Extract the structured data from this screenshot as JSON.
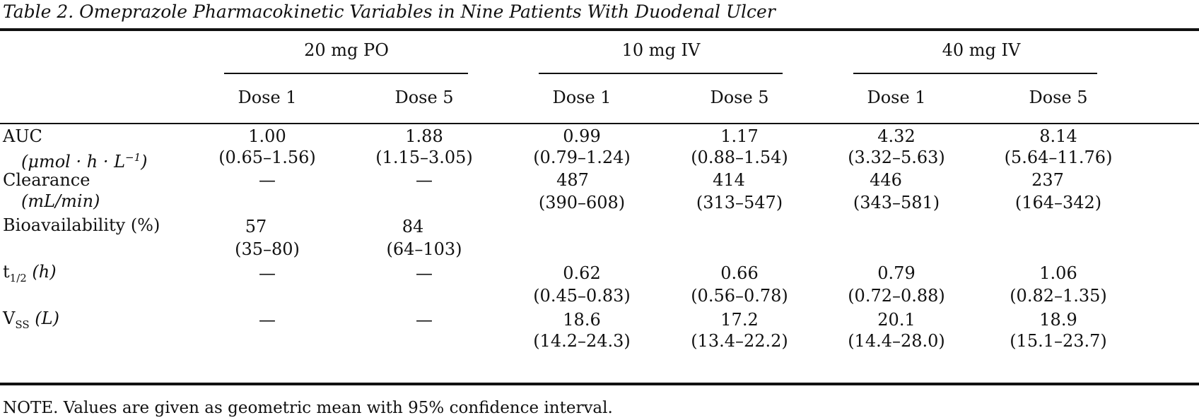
{
  "caption": "Table 2.  Omeprazole Pharmacokinetic Variables in Nine Patients With Duodenal Ulcer",
  "groups": [
    "20 mg PO",
    "10 mg IV",
    "40 mg IV"
  ],
  "dose_headers": [
    "Dose 1",
    "Dose 5",
    "Dose 1",
    "Dose 5",
    "Dose 1",
    "Dose 5"
  ],
  "rows": {
    "auc": {
      "label": "AUC",
      "unit_prefix": "(μmol · h · L",
      "unit_sup": "−1",
      "unit_suffix": ")",
      "values": [
        "1.00",
        "1.88",
        "0.99",
        "1.17",
        "4.32",
        "8.14"
      ],
      "ranges": [
        "(0.65–1.56)",
        "(1.15–3.05)",
        "(0.79–1.24)",
        "(0.88–1.54)",
        "(3.32–5.63)",
        "(5.64–11.76)"
      ]
    },
    "clearance": {
      "label": "Clearance",
      "unit": "(mL/min)",
      "values": [
        "—",
        "—",
        "487",
        "414",
        "446",
        "237"
      ],
      "ranges": [
        "",
        "",
        "(390–608)",
        "(313–547)",
        "(343–581)",
        "(164–342)"
      ]
    },
    "bioavailability": {
      "label": "Bioavailability (%)",
      "values": [
        "57",
        "84"
      ],
      "ranges": [
        "(35–80)",
        "(64–103)"
      ]
    },
    "half_life": {
      "label_main": "t",
      "label_sub": "1/2",
      "label_unit": " (h)",
      "values": [
        "—",
        "—",
        "0.62",
        "0.66",
        "0.79",
        "1.06"
      ],
      "ranges": [
        "",
        "",
        "(0.45–0.83)",
        "(0.56–0.78)",
        "(0.72–0.88)",
        "(0.82–1.35)"
      ]
    },
    "vss": {
      "label_main": "V",
      "label_sub": "SS",
      "label_unit": " (L)",
      "values": [
        "—",
        "—",
        "18.6",
        "17.2",
        "20.1",
        "18.9"
      ],
      "ranges": [
        "",
        "",
        "(14.2–24.3)",
        "(13.4–22.2)",
        "(14.4–28.0)",
        "(15.1–23.7)"
      ]
    }
  },
  "note": "NOTE. Values are given as geometric mean with 95% confidence interval."
}
